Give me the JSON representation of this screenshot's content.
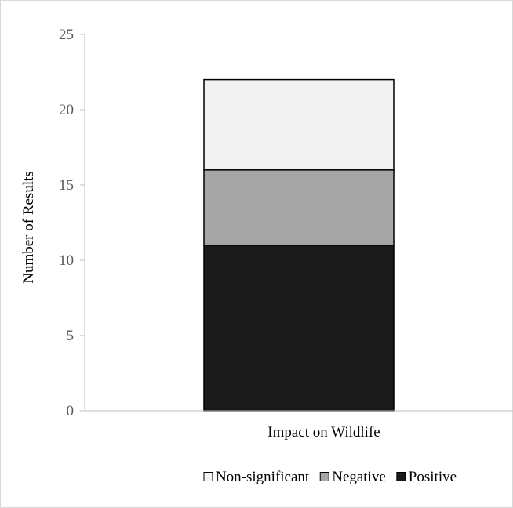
{
  "chart_data": {
    "type": "bar",
    "stacked": true,
    "categories": [
      "Impact on Wildlife"
    ],
    "series": [
      {
        "name": "Positive",
        "values": [
          11
        ],
        "color": "#1a1a1a"
      },
      {
        "name": "Negative",
        "values": [
          5
        ],
        "color": "#a6a6a6"
      },
      {
        "name": "Non-significant",
        "values": [
          6
        ],
        "color": "#f2f2f2"
      }
    ],
    "legend_order": [
      "Non-significant",
      "Negative",
      "Positive"
    ],
    "title": "",
    "xlabel": "",
    "ylabel": "Number of Results",
    "ylim": [
      0,
      25
    ],
    "yticks": [
      0,
      5,
      10,
      15,
      20,
      25
    ],
    "grid": false,
    "legend_position": "bottom"
  }
}
